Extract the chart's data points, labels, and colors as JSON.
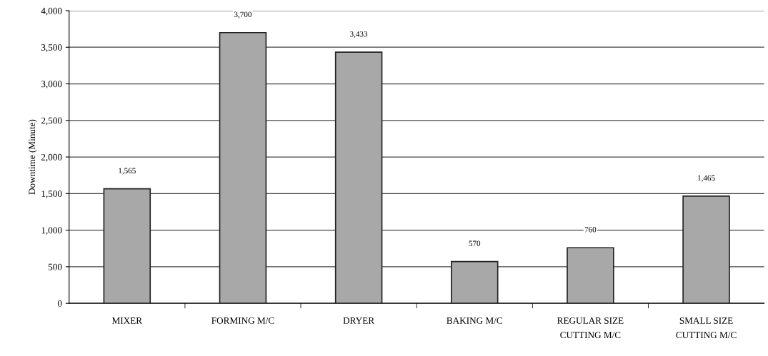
{
  "chart_data": {
    "type": "bar",
    "ylabel": "Downtime (Minute)",
    "categories": [
      "MIXER",
      "FORMING M/C",
      "DRYER",
      "BAKING M/C",
      "REGULAR SIZE\nCUTTING M/C",
      "SMALL SIZE\nCUTTING M/C"
    ],
    "values": [
      1565,
      3700,
      3433,
      570,
      760,
      1465
    ],
    "value_labels": [
      "1,565",
      "3,700",
      "3,433",
      "570",
      "760",
      "1,465"
    ],
    "color": "#a8a8a8",
    "ylim": [
      0,
      4000
    ],
    "yticks": [
      {
        "value": 0,
        "label": "0"
      },
      {
        "value": 500,
        "label": "500"
      },
      {
        "value": 1000,
        "label": "1,000"
      },
      {
        "value": 1500,
        "label": "1,500"
      },
      {
        "value": 2000,
        "label": "2,000"
      },
      {
        "value": 2500,
        "label": "2,500"
      },
      {
        "value": 3000,
        "label": "3,000"
      },
      {
        "value": 3500,
        "label": "3,500"
      },
      {
        "value": 4000,
        "label": "4,000"
      }
    ],
    "grid": "y",
    "legend": false
  }
}
